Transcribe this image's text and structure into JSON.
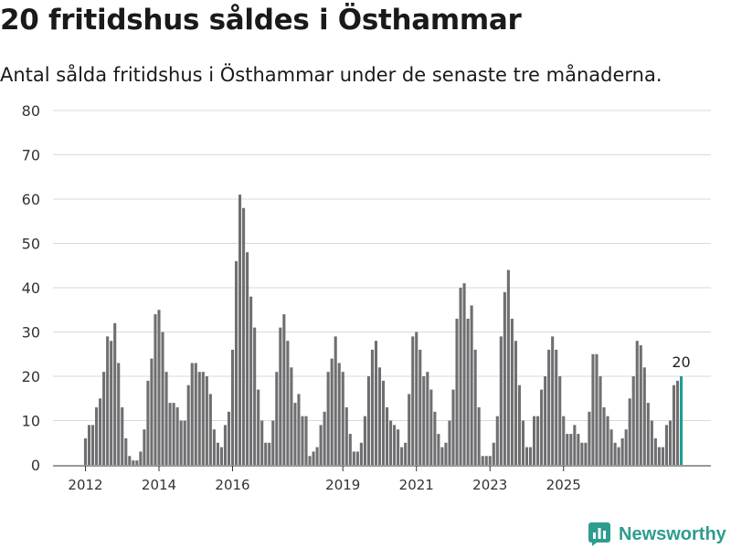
{
  "title": "20 fritidshus såldes i Östhammar",
  "subtitle": "Antal sålda fritidshus i Östhammar under de senaste tre månaderna.",
  "brand": {
    "name": "Newsworthy",
    "icon": "newsworthy-logo-icon"
  },
  "colors": {
    "bar": "#6f6e71",
    "highlight": "#1f9e93",
    "grid": "#d9d9d9",
    "axis": "#333333",
    "brand": "#2e9c8f"
  },
  "chart_data": {
    "type": "bar",
    "title": "",
    "xlabel": "",
    "ylabel": "",
    "ylim": [
      0,
      80
    ],
    "yticks": [
      0,
      10,
      20,
      30,
      40,
      50,
      60,
      70,
      80
    ],
    "start": "2012-01",
    "frequency": "monthly",
    "xtick_labels": [
      {
        "label": "2012",
        "index": 0
      },
      {
        "label": "2014",
        "index": 20
      },
      {
        "label": "2016",
        "index": 40
      },
      {
        "label": "2019",
        "index": 70
      },
      {
        "label": "2021",
        "index": 90
      },
      {
        "label": "2023",
        "index": 110
      },
      {
        "label": "2025",
        "index": 130
      }
    ],
    "values": [
      6,
      9,
      9,
      13,
      15,
      21,
      29,
      28,
      32,
      23,
      13,
      6,
      2,
      1,
      1,
      3,
      8,
      19,
      24,
      34,
      35,
      30,
      21,
      14,
      14,
      13,
      10,
      10,
      18,
      23,
      23,
      21,
      21,
      20,
      16,
      8,
      5,
      4,
      9,
      12,
      26,
      46,
      61,
      58,
      48,
      38,
      31,
      17,
      10,
      5,
      5,
      10,
      21,
      31,
      34,
      28,
      22,
      14,
      16,
      11,
      11,
      2,
      3,
      4,
      9,
      12,
      21,
      24,
      29,
      23,
      21,
      13,
      7,
      3,
      3,
      5,
      11,
      20,
      26,
      28,
      22,
      19,
      13,
      10,
      9,
      8,
      4,
      5,
      16,
      29,
      30,
      26,
      20,
      21,
      17,
      12,
      7,
      4,
      5,
      10,
      17,
      33,
      40,
      41,
      33,
      36,
      26,
      13,
      2,
      2,
      2,
      5,
      11,
      29,
      39,
      44,
      33,
      28,
      18,
      10,
      4,
      4,
      11,
      11,
      17,
      20,
      26,
      29,
      26,
      20,
      11,
      7,
      7,
      9,
      7,
      5,
      5,
      12,
      25,
      25,
      20,
      13,
      11,
      8,
      5,
      4,
      6,
      8,
      15,
      20,
      28,
      27,
      22,
      14,
      10,
      6,
      4,
      4,
      9,
      10,
      18,
      19,
      20
    ],
    "highlight_index": 162,
    "highlight_label": "20"
  }
}
